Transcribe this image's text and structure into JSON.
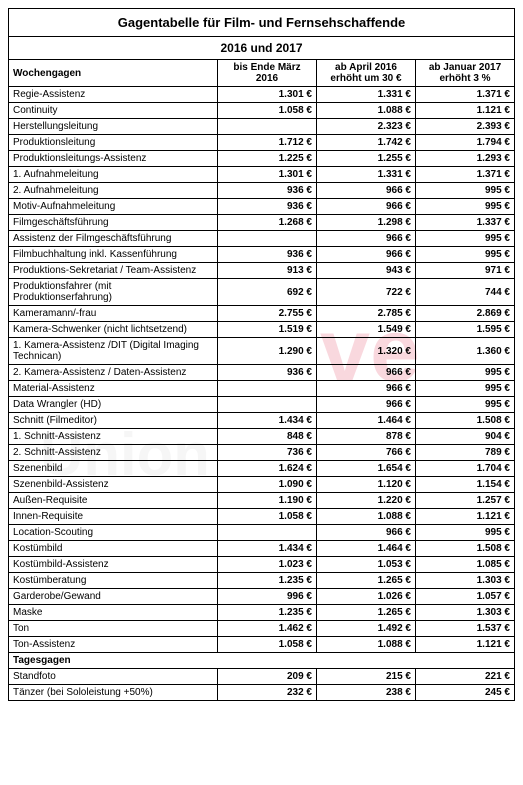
{
  "title": "Gagentabelle für Film- und Fernsehschaffende",
  "year_header": "2016 und 2017",
  "columns": {
    "label": "Wochengagen",
    "c1": "bis Ende März 2016",
    "c2": "ab April 2016 erhöht um 30 €",
    "c3": "ab Januar 2017 erhöht 3 %"
  },
  "rows": [
    {
      "label": "Regie-Assistenz",
      "c1": "1.301 €",
      "c2": "1.331 €",
      "c3": "1.371 €"
    },
    {
      "label": "Continuity",
      "c1": "1.058 €",
      "c2": "1.088 €",
      "c3": "1.121 €"
    },
    {
      "label": "Herstellungsleitung",
      "c1": "",
      "c2": "2.323 €",
      "c3": "2.393 €"
    },
    {
      "label": "Produktionsleitung",
      "c1": "1.712 €",
      "c2": "1.742 €",
      "c3": "1.794 €"
    },
    {
      "label": "Produktionsleitungs-Assistenz",
      "c1": "1.225 €",
      "c2": "1.255 €",
      "c3": "1.293 €"
    },
    {
      "label": "1. Aufnahmeleitung",
      "c1": "1.301 €",
      "c2": "1.331 €",
      "c3": "1.371 €"
    },
    {
      "label": "2. Aufnahmeleitung",
      "c1": "936 €",
      "c2": "966 €",
      "c3": "995 €"
    },
    {
      "label": "Motiv-Aufnahmeleitung",
      "c1": "936 €",
      "c2": "966 €",
      "c3": "995 €"
    },
    {
      "label": "Filmgeschäftsführung",
      "c1": "1.268 €",
      "c2": "1.298 €",
      "c3": "1.337 €"
    },
    {
      "label": "Assistenz der Filmgeschäftsführung",
      "c1": "",
      "c2": "966 €",
      "c3": "995 €"
    },
    {
      "label": "Filmbuchhaltung inkl. Kassenführung",
      "c1": "936 €",
      "c2": "966 €",
      "c3": "995 €"
    },
    {
      "label": "Produktions-Sekretariat / Team-Assistenz",
      "c1": "913 €",
      "c2": "943 €",
      "c3": "971 €"
    },
    {
      "label": "Produktionsfahrer (mit Produktionserfahrung)",
      "c1": "692 €",
      "c2": "722 €",
      "c3": "744 €"
    },
    {
      "label": "Kameramann/-frau",
      "c1": "2.755 €",
      "c2": "2.785 €",
      "c3": "2.869 €"
    },
    {
      "label": "Kamera-Schwenker (nicht lichtsetzend)",
      "c1": "1.519 €",
      "c2": "1.549 €",
      "c3": "1.595 €"
    },
    {
      "label": "1. Kamera-Assistenz /DIT (Digital Imaging Technican)",
      "c1": "1.290 €",
      "c2": "1.320 €",
      "c3": "1.360 €"
    },
    {
      "label": "2. Kamera-Assistenz / Daten-Assistenz",
      "c1": "936 €",
      "c2": "966 €",
      "c3": "995 €"
    },
    {
      "label": "Material-Assistenz",
      "c1": "",
      "c2": "966 €",
      "c3": "995 €"
    },
    {
      "label": "Data Wrangler (HD)",
      "c1": "",
      "c2": "966 €",
      "c3": "995 €"
    },
    {
      "label": "Schnitt (Filmeditor)",
      "c1": "1.434 €",
      "c2": "1.464 €",
      "c3": "1.508 €"
    },
    {
      "label": "1. Schnitt-Assistenz",
      "c1": "848 €",
      "c2": "878 €",
      "c3": "904 €"
    },
    {
      "label": "2. Schnitt-Assistenz",
      "c1": "736 €",
      "c2": "766 €",
      "c3": "789 €"
    },
    {
      "label": "Szenenbild",
      "c1": "1.624 €",
      "c2": "1.654 €",
      "c3": "1.704 €"
    },
    {
      "label": "Szenenbild-Assistenz",
      "c1": "1.090 €",
      "c2": "1.120 €",
      "c3": "1.154 €"
    },
    {
      "label": "Außen-Requisite",
      "c1": "1.190 €",
      "c2": "1.220 €",
      "c3": "1.257 €"
    },
    {
      "label": "Innen-Requisite",
      "c1": "1.058 €",
      "c2": "1.088 €",
      "c3": "1.121 €"
    },
    {
      "label": "Location-Scouting",
      "c1": "",
      "c2": "966 €",
      "c3": "995 €"
    },
    {
      "label": "Kostümbild",
      "c1": "1.434 €",
      "c2": "1.464 €",
      "c3": "1.508 €"
    },
    {
      "label": "Kostümbild-Assistenz",
      "c1": "1.023 €",
      "c2": "1.053 €",
      "c3": "1.085 €"
    },
    {
      "label": "Kostümberatung",
      "c1": "1.235 €",
      "c2": "1.265 €",
      "c3": "1.303 €"
    },
    {
      "label": "Garderobe/Gewand",
      "c1": "996 €",
      "c2": "1.026 €",
      "c3": "1.057 €"
    },
    {
      "label": "Maske",
      "c1": "1.235 €",
      "c2": "1.265 €",
      "c3": "1.303 €"
    },
    {
      "label": "Ton",
      "c1": "1.462 €",
      "c2": "1.492 €",
      "c3": "1.537 €"
    },
    {
      "label": "Ton-Assistenz",
      "c1": "1.058 €",
      "c2": "1.088 €",
      "c3": "1.121 €"
    }
  ],
  "section2": "Tagesgagen",
  "rows2": [
    {
      "label": "Standfoto",
      "c1": "209 €",
      "c2": "215 €",
      "c3": "221 €"
    },
    {
      "label": "Tänzer (bei Sololeistung +50%)",
      "c1": "232 €",
      "c2": "238 €",
      "c3": "245 €"
    }
  ]
}
